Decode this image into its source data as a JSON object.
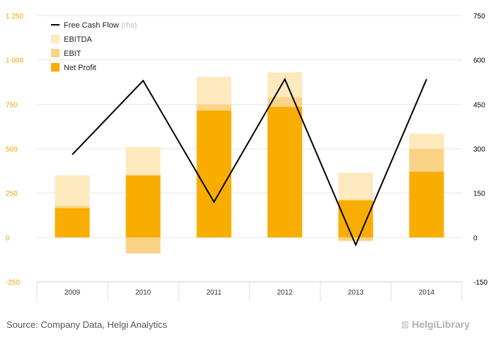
{
  "source": "Source: Company Data, Helgi Analytics",
  "brand": "HelgiLibrary",
  "colors": {
    "ebitda": "#FDE9BE",
    "ebit": "#FBD387",
    "net_profit": "#F9AD00",
    "fcf": "#000000",
    "left_axis_text": "#F0A500",
    "right_axis_text": "#000000",
    "grid": "#E6E6E6"
  },
  "chart_data": {
    "type": "bar",
    "categories": [
      "2009",
      "2010",
      "2011",
      "2012",
      "2013",
      "2014"
    ],
    "series": [
      {
        "name": "EBITDA",
        "kind": "bar",
        "axis": "left",
        "values": [
          350,
          510,
          905,
          930,
          365,
          585
        ]
      },
      {
        "name": "EBIT",
        "kind": "bar",
        "axis": "left",
        "values": [
          178,
          -90,
          750,
          790,
          -20,
          500
        ]
      },
      {
        "name": "Net Profit",
        "kind": "bar",
        "axis": "left",
        "values": [
          165,
          350,
          715,
          735,
          210,
          370
        ]
      },
      {
        "name": "Free Cash Flow",
        "kind": "line",
        "axis": "right",
        "values": [
          280,
          530,
          120,
          535,
          -25,
          535
        ]
      }
    ],
    "legend": [
      {
        "label": "Free Cash Flow",
        "suffix": "(rhs)",
        "kind": "line"
      },
      {
        "label": "EBITDA",
        "kind": "box"
      },
      {
        "label": "EBIT",
        "kind": "box"
      },
      {
        "label": "Net Profit",
        "kind": "box"
      }
    ],
    "legend_position": "top-left",
    "y_left": {
      "min": -250,
      "max": 1250,
      "ticks": [
        -250,
        0,
        250,
        500,
        750,
        1000,
        1250
      ],
      "tick_labels": [
        "-250",
        "0",
        "250",
        "500",
        "750",
        "1 000",
        "1 250"
      ]
    },
    "y_right": {
      "min": -150,
      "max": 750,
      "ticks": [
        -150,
        0,
        150,
        300,
        450,
        600,
        750
      ],
      "tick_labels": [
        "-150",
        "0",
        "150",
        "300",
        "450",
        "600",
        "750"
      ]
    },
    "grid": true
  }
}
